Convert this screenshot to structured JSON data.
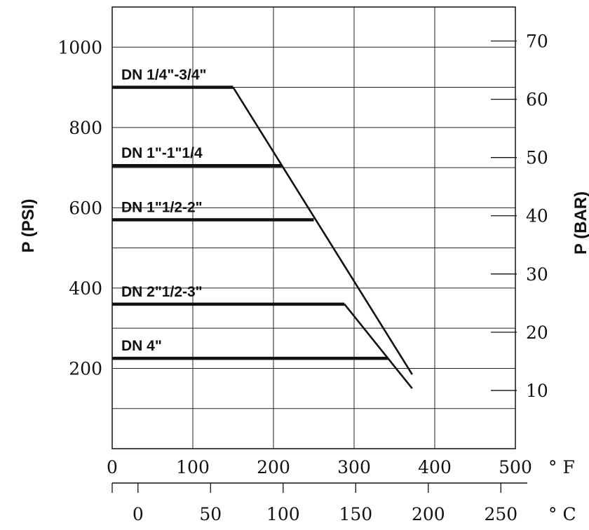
{
  "chart_data": {
    "type": "line",
    "title": "",
    "ylabel_left": "P (PSI)",
    "ylabel_right": "P (BAR)",
    "xunit_f": "° F",
    "xunit_c": "° C",
    "xlim": [
      0,
      500
    ],
    "ylim": [
      0,
      1100
    ],
    "x_ticks_f": [
      "0",
      "100",
      "200",
      "300",
      "400",
      "500"
    ],
    "x_ticks_c": [
      "0",
      "50",
      "100",
      "150",
      "200",
      "250"
    ],
    "c_tick_values": [
      0,
      50,
      100,
      150,
      200,
      250
    ],
    "y_ticks_psi": [
      "200",
      "400",
      "600",
      "800",
      "1000"
    ],
    "y_ticks_psi_values": [
      200,
      400,
      600,
      800,
      1000
    ],
    "y_ticks_bar": [
      "10",
      "20",
      "30",
      "40",
      "50",
      "60",
      "70"
    ],
    "y_ticks_bar_values": [
      10,
      20,
      30,
      40,
      50,
      60,
      70
    ],
    "grid": true,
    "series": [
      {
        "name": "DN 1/4\"-3/4\"",
        "points": [
          [
            0,
            900
          ],
          [
            150,
            900
          ],
          [
            372,
            185
          ]
        ]
      },
      {
        "name": "DN 1\"-1\"1/4",
        "points": [
          [
            0,
            705
          ],
          [
            210,
            705
          ]
        ]
      },
      {
        "name": "DN 1\"1/2-2\"",
        "points": [
          [
            0,
            570
          ],
          [
            250,
            570
          ]
        ]
      },
      {
        "name": "DN 2\"1/2-3\"",
        "points": [
          [
            0,
            360
          ],
          [
            288,
            360
          ],
          [
            372,
            150
          ]
        ]
      },
      {
        "name": "DN 4\"",
        "points": [
          [
            0,
            225
          ],
          [
            342,
            225
          ]
        ]
      }
    ]
  }
}
